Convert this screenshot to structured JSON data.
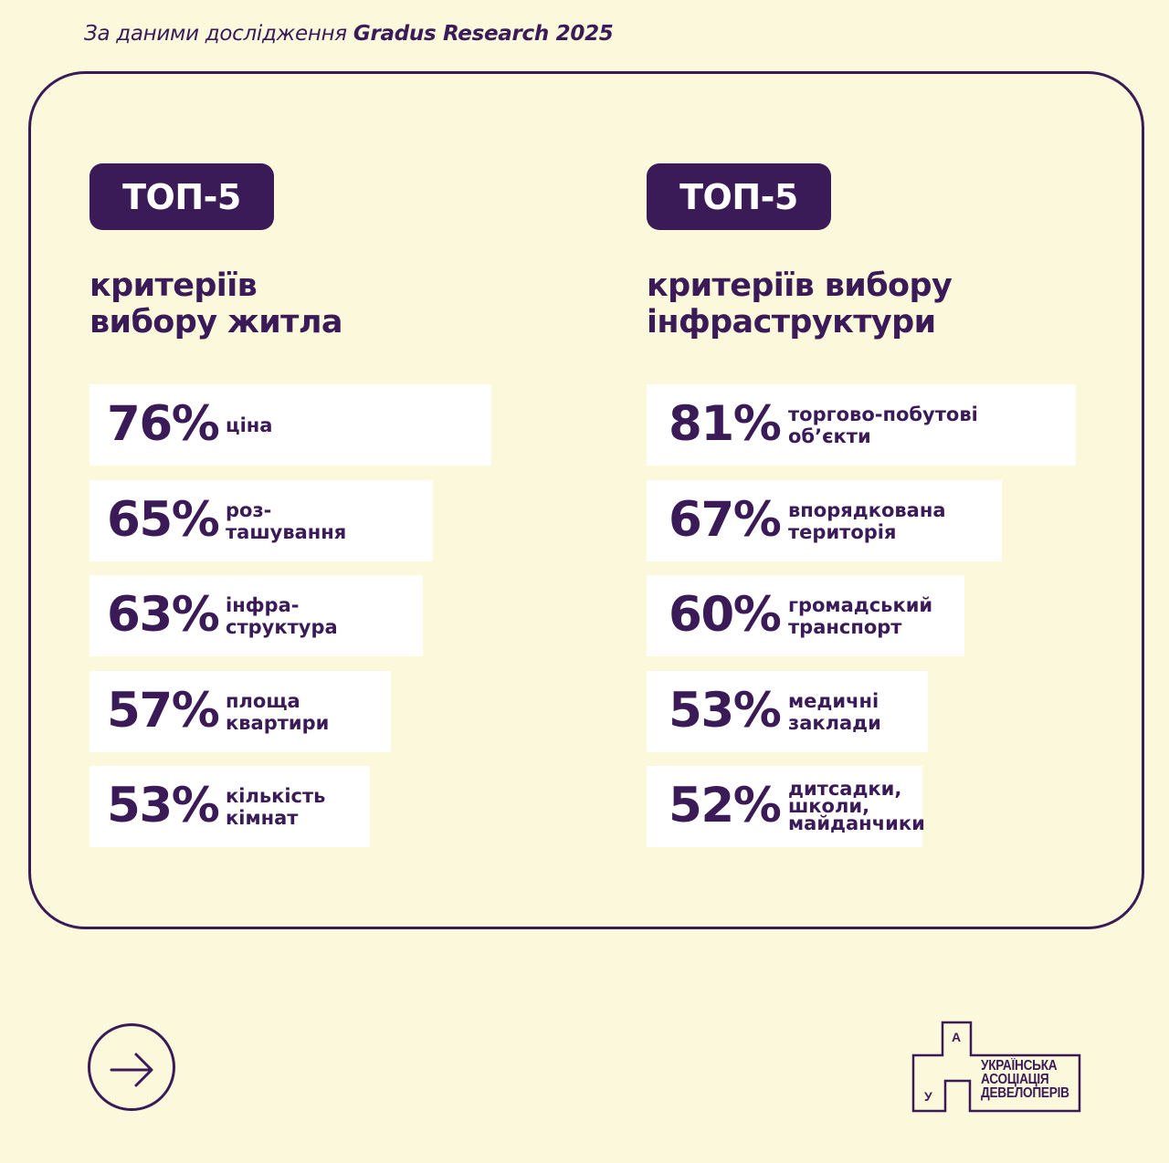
{
  "source": {
    "prefix": "За даними дослідження ",
    "highlight": "Gradus Research 2025"
  },
  "colors": {
    "background": "#FCF8DB",
    "accent": "#3A1B57",
    "bar": "#FFFFFF"
  },
  "chart_data": [
    {
      "type": "bar",
      "badge": "ТОП-5",
      "title_lines": [
        "критеріїв",
        "вибору житла"
      ],
      "categories": [
        [
          "ціна"
        ],
        [
          "роз-",
          "ташування"
        ],
        [
          "інфра-",
          "структура"
        ],
        [
          "площа",
          "квартири"
        ],
        [
          "кількість",
          "кімнат"
        ]
      ],
      "values": [
        76,
        65,
        63,
        57,
        53
      ],
      "value_labels": [
        "76%",
        "65%",
        "63%",
        "57%",
        "53%"
      ]
    },
    {
      "type": "bar",
      "badge": "ТОП-5",
      "title_lines": [
        "критеріїв вибору",
        "інфраструктури"
      ],
      "categories": [
        [
          "торгово-побутові",
          "об’єкти"
        ],
        [
          "впорядкована",
          "територія"
        ],
        [
          "громадський",
          "транспорт"
        ],
        [
          "медичні",
          "заклади"
        ],
        [
          "дитсадки,",
          "школи,",
          "майданчики"
        ]
      ],
      "values": [
        81,
        67,
        60,
        53,
        52
      ],
      "value_labels": [
        "81%",
        "67%",
        "60%",
        "53%",
        "52%"
      ]
    }
  ],
  "navigation": {
    "next_icon": "arrow-right-icon"
  },
  "logo": {
    "icon": "house-icon",
    "letters": [
      "А",
      "У"
    ],
    "lines": [
      "УКРАЇНСЬКА",
      "АСОЦІАЦІЯ",
      "ДЕВЕЛОПЕРІВ"
    ]
  }
}
